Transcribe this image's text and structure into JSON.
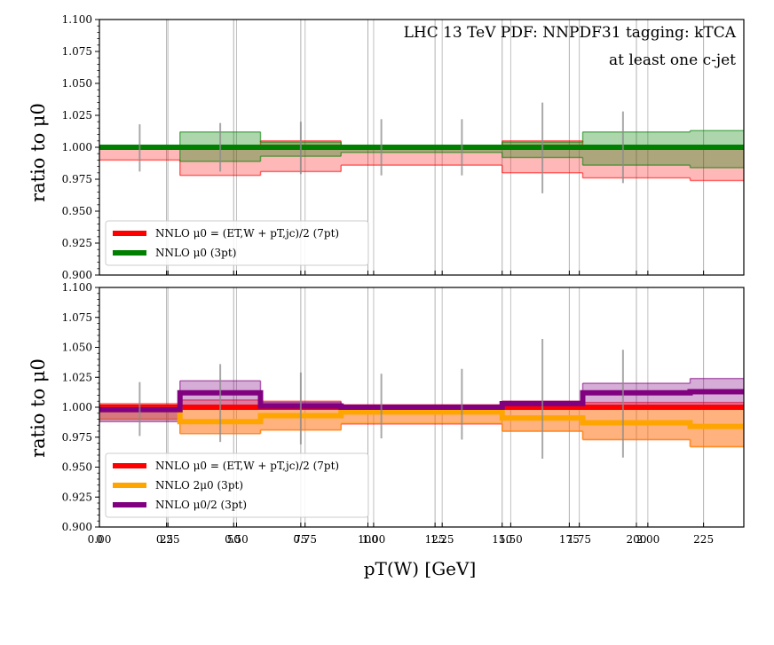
{
  "chart_data": [
    {
      "type": "line",
      "ylabel": "ratio to μ0",
      "ylim": [
        0.9,
        1.1
      ],
      "xlim": [
        0,
        240
      ],
      "yticks": [
        "0.900",
        "0.925",
        "0.950",
        "0.975",
        "1.000",
        "1.025",
        "1.050",
        "1.075",
        "1.100"
      ],
      "annotation": [
        "LHC 13 TeV PDF: NNPDF31 tagging: kTCA",
        "at least one c-jet"
      ],
      "bins": [
        0,
        30,
        60,
        90,
        150,
        180,
        220,
        240
      ],
      "series": [
        {
          "name": "NNLO μ0 = (ET,W + pT,jc)/2 (7pt)",
          "color": "#ff0000",
          "central": [
            1.0,
            1.0,
            1.0,
            1.0,
            1.0,
            1.0,
            1.0
          ],
          "lo": [
            0.99,
            0.978,
            0.981,
            0.986,
            0.98,
            0.976,
            0.974
          ],
          "hi": [
            1.0,
            1.0,
            1.005,
            1.0,
            1.005,
            1.0,
            1.0
          ]
        },
        {
          "name": "NNLO μ0 (3pt)",
          "color": "#008000",
          "central": [
            1.0,
            1.0,
            1.0,
            1.0,
            1.0,
            1.0,
            1.0
          ],
          "lo": [
            1.0,
            0.989,
            0.993,
            0.996,
            0.992,
            0.986,
            0.984
          ],
          "hi": [
            1.0,
            1.012,
            1.004,
            1.0,
            1.004,
            1.012,
            1.013
          ]
        }
      ],
      "errorbars": [
        {
          "x": 15,
          "lo": 0.981,
          "hi": 1.018
        },
        {
          "x": 45,
          "lo": 0.981,
          "hi": 1.019
        },
        {
          "x": 75,
          "lo": 0.979,
          "hi": 1.02
        },
        {
          "x": 105,
          "lo": 0.978,
          "hi": 1.022
        },
        {
          "x": 135,
          "lo": 0.978,
          "hi": 1.022
        },
        {
          "x": 165,
          "lo": 0.964,
          "hi": 1.035
        },
        {
          "x": 195,
          "lo": 0.972,
          "hi": 1.028
        }
      ]
    },
    {
      "type": "line",
      "ylabel": "ratio to μ0",
      "xlabel": "pT(W) [GeV]",
      "ylim": [
        0.9,
        1.1
      ],
      "xlim": [
        0,
        240
      ],
      "yticks": [
        "0.900",
        "0.925",
        "0.950",
        "0.975",
        "1.000",
        "1.025",
        "1.050",
        "1.075",
        "1.100"
      ],
      "xticks": [
        "0",
        "25",
        "50",
        "75",
        "100",
        "125",
        "150",
        "175",
        "200",
        "225"
      ],
      "xticks_secondary": [
        "0.00",
        "0.25",
        "0.50",
        "0.75",
        "1.00",
        "1.25",
        "1.50",
        "1.75",
        "2.00"
      ],
      "bins": [
        0,
        30,
        60,
        90,
        150,
        180,
        220,
        240
      ],
      "series": [
        {
          "name": "NNLO μ0 = (ET,W + pT,jc)/2 (7pt)",
          "color": "#ff0000",
          "central": [
            1.0,
            1.0,
            1.0,
            1.0,
            1.0,
            1.0,
            1.0
          ],
          "lo": [
            0.99,
            0.978,
            0.981,
            0.986,
            0.98,
            0.973,
            0.967
          ],
          "hi": [
            1.003,
            1.006,
            1.005,
            1.002,
            1.005,
            1.004,
            1.004
          ]
        },
        {
          "name": "NNLO 2μ0 (3pt)",
          "color": "#ffa500",
          "central": [
            0.998,
            0.988,
            0.993,
            0.996,
            0.991,
            0.987,
            0.984
          ],
          "lo": [
            0.99,
            0.978,
            0.981,
            0.987,
            0.98,
            0.973,
            0.967
          ],
          "hi": [
            1.0,
            1.0,
            1.0,
            1.0,
            1.0,
            1.0,
            1.0
          ]
        },
        {
          "name": "NNLO μ0/2 (3pt)",
          "color": "#800080",
          "central": [
            0.998,
            1.012,
            1.001,
            1.0,
            1.003,
            1.012,
            1.013
          ],
          "lo": [
            0.988,
            1.0,
            1.0,
            1.0,
            1.0,
            1.0,
            1.0
          ],
          "hi": [
            1.0,
            1.022,
            1.004,
            1.0,
            1.005,
            1.02,
            1.024
          ]
        }
      ],
      "errorbars": [
        {
          "x": 15,
          "lo": 0.976,
          "hi": 1.021
        },
        {
          "x": 45,
          "lo": 0.971,
          "hi": 1.036
        },
        {
          "x": 75,
          "lo": 0.969,
          "hi": 1.029
        },
        {
          "x": 105,
          "lo": 0.974,
          "hi": 1.028
        },
        {
          "x": 135,
          "lo": 0.973,
          "hi": 1.032
        },
        {
          "x": 165,
          "lo": 0.957,
          "hi": 1.057
        },
        {
          "x": 195,
          "lo": 0.958,
          "hi": 1.048
        }
      ]
    }
  ]
}
